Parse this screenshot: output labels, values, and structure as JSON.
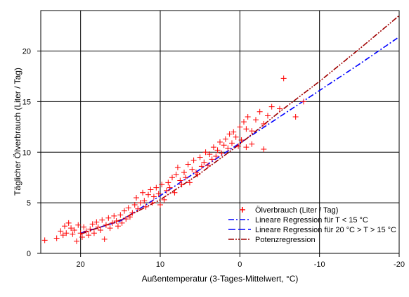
{
  "chart_data": {
    "type": "scatter",
    "xlabel": "Außentemperatur (3-Tages-Mittelwert, °C)",
    "ylabel": "Täglicher Ölverbrauch (Liter / Tag)",
    "x_reversed": true,
    "xlim": [
      25,
      -20
    ],
    "ylim": [
      0,
      24
    ],
    "xticks": [
      20,
      10,
      0,
      -10,
      -20
    ],
    "yticks": [
      0,
      5,
      10,
      15,
      20
    ],
    "grid": true,
    "legend_position": "bottom-right",
    "series": [
      {
        "name": "Ölverbrauch (Liter / Tag)",
        "kind": "scatter",
        "marker": "plus",
        "color": "#ff0000",
        "points": [
          [
            24.5,
            1.3
          ],
          [
            23.0,
            1.5
          ],
          [
            22.5,
            2.2
          ],
          [
            22.2,
            1.8
          ],
          [
            22.0,
            2.7
          ],
          [
            21.8,
            2.0
          ],
          [
            21.5,
            3.0
          ],
          [
            21.2,
            2.5
          ],
          [
            21.0,
            1.9
          ],
          [
            20.8,
            2.3
          ],
          [
            20.5,
            1.2
          ],
          [
            20.3,
            2.8
          ],
          [
            20.0,
            2.0
          ],
          [
            19.8,
            1.6
          ],
          [
            19.6,
            2.6
          ],
          [
            19.3,
            2.2
          ],
          [
            19.0,
            1.8
          ],
          [
            18.8,
            2.4
          ],
          [
            18.5,
            2.9
          ],
          [
            18.3,
            2.0
          ],
          [
            18.0,
            3.1
          ],
          [
            17.8,
            2.6
          ],
          [
            17.5,
            2.3
          ],
          [
            17.3,
            3.3
          ],
          [
            17.0,
            1.4
          ],
          [
            16.8,
            2.8
          ],
          [
            16.5,
            3.5
          ],
          [
            16.3,
            2.5
          ],
          [
            16.0,
            3.0
          ],
          [
            15.8,
            3.7
          ],
          [
            15.5,
            3.2
          ],
          [
            15.3,
            2.7
          ],
          [
            15.0,
            3.8
          ],
          [
            14.8,
            3.0
          ],
          [
            14.5,
            4.2
          ],
          [
            14.3,
            3.4
          ],
          [
            14.0,
            4.5
          ],
          [
            13.8,
            3.6
          ],
          [
            13.5,
            4.0
          ],
          [
            13.2,
            4.8
          ],
          [
            13.0,
            5.5
          ],
          [
            12.8,
            4.4
          ],
          [
            12.5,
            5.0
          ],
          [
            12.2,
            6.0
          ],
          [
            12.0,
            5.2
          ],
          [
            11.8,
            4.6
          ],
          [
            11.5,
            5.8
          ],
          [
            11.2,
            6.3
          ],
          [
            11.0,
            5.0
          ],
          [
            10.8,
            5.6
          ],
          [
            10.5,
            6.5
          ],
          [
            10.2,
            5.9
          ],
          [
            10.0,
            4.8
          ],
          [
            9.8,
            6.8
          ],
          [
            9.5,
            5.3
          ],
          [
            9.2,
            6.2
          ],
          [
            9.0,
            7.0
          ],
          [
            8.8,
            6.5
          ],
          [
            8.5,
            7.5
          ],
          [
            8.2,
            6.0
          ],
          [
            8.0,
            7.8
          ],
          [
            7.8,
            8.5
          ],
          [
            7.5,
            7.2
          ],
          [
            7.3,
            6.8
          ],
          [
            7.0,
            8.0
          ],
          [
            6.8,
            7.5
          ],
          [
            6.5,
            8.8
          ],
          [
            6.3,
            7.0
          ],
          [
            6.0,
            8.3
          ],
          [
            5.8,
            9.2
          ],
          [
            5.5,
            8.0
          ],
          [
            5.3,
            7.8
          ],
          [
            5.0,
            9.5
          ],
          [
            4.8,
            8.6
          ],
          [
            4.5,
            9.0
          ],
          [
            4.3,
            10.0
          ],
          [
            4.0,
            8.7
          ],
          [
            3.8,
            9.8
          ],
          [
            3.5,
            9.3
          ],
          [
            3.3,
            10.5
          ],
          [
            3.0,
            9.6
          ],
          [
            2.8,
            10.2
          ],
          [
            2.5,
            11.0
          ],
          [
            2.3,
            9.9
          ],
          [
            2.0,
            10.7
          ],
          [
            1.8,
            11.3
          ],
          [
            1.5,
            10.4
          ],
          [
            1.3,
            11.8
          ],
          [
            1.0,
            10.9
          ],
          [
            0.8,
            12.0
          ],
          [
            0.5,
            11.5
          ],
          [
            0.2,
            10.6
          ],
          [
            0.0,
            12.5
          ],
          [
            -0.2,
            11.2
          ],
          [
            -0.5,
            13.0
          ],
          [
            -0.8,
            12.3
          ],
          [
            -1.0,
            13.5
          ],
          [
            -1.5,
            12.1
          ],
          [
            -2.0,
            13.2
          ],
          [
            -2.5,
            14.0
          ],
          [
            -3.0,
            12.8
          ],
          [
            -3.5,
            13.6
          ],
          [
            -4.0,
            14.5
          ],
          [
            -5.0,
            14.3
          ],
          [
            -5.5,
            17.3
          ],
          [
            -7.0,
            13.5
          ],
          [
            -8.0,
            15.0
          ],
          [
            -0.8,
            10.5
          ],
          [
            -1.5,
            10.8
          ],
          [
            -3.0,
            10.3
          ]
        ]
      },
      {
        "name": "Lineare Regression für T < 15 °C",
        "kind": "line",
        "dash": "dashdot",
        "color": "#0000ff",
        "x": [
          15,
          10,
          5,
          0,
          -5,
          -10,
          -15,
          -20
        ],
        "values": [
          3.2,
          5.7,
          8.3,
          10.9,
          13.5,
          16.1,
          18.7,
          21.4
        ]
      },
      {
        "name": "Lineare Regression für 20 °C > T > 15 °C",
        "kind": "line",
        "dash": "dash",
        "color": "#0000ff",
        "x": [
          20,
          15
        ],
        "values": [
          2.0,
          3.2
        ]
      },
      {
        "name": "Potenzregression",
        "kind": "line",
        "dash": "dashdotdot",
        "color": "#a00000",
        "x": [
          20,
          15,
          10,
          5,
          0,
          -5,
          -10,
          -15,
          -20
        ],
        "values": [
          1.9,
          3.3,
          5.3,
          7.9,
          10.8,
          14.0,
          17.0,
          20.2,
          23.5
        ]
      }
    ]
  }
}
